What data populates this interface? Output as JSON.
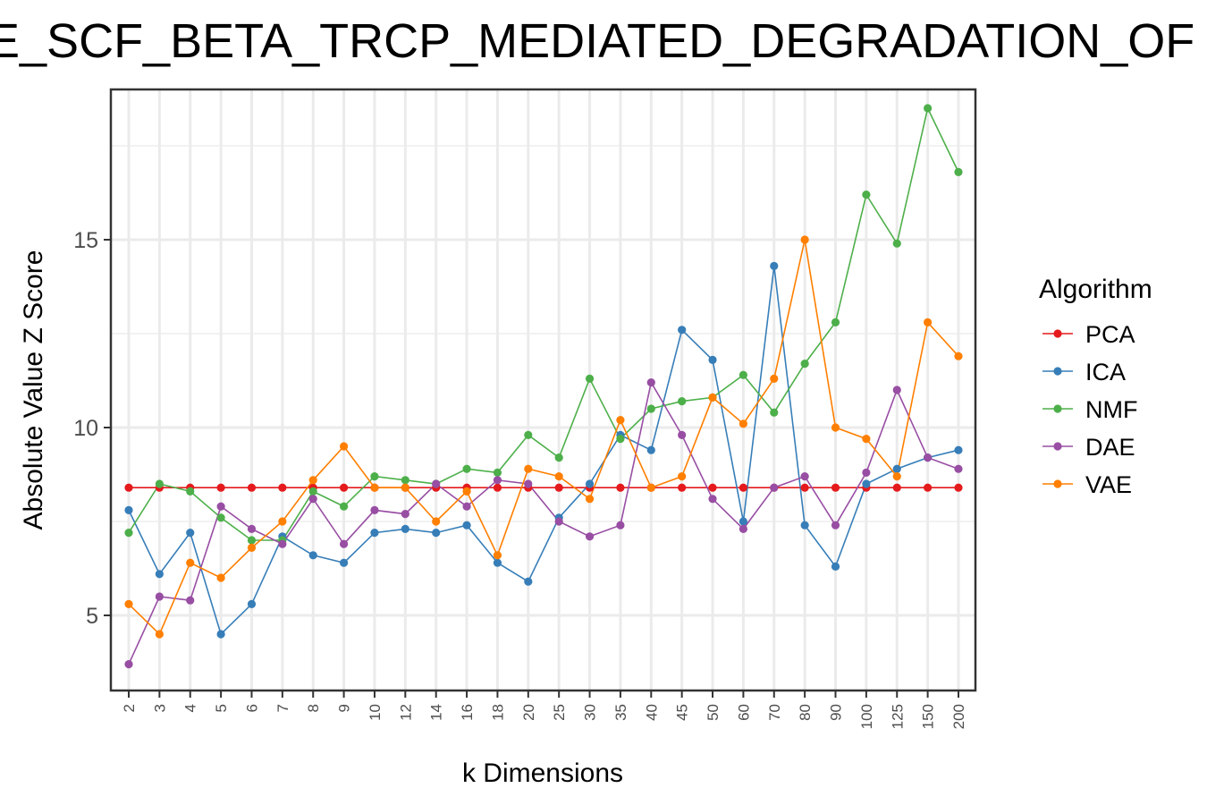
{
  "chart_data": {
    "type": "line",
    "title": "E_SCF_BETA_TRCP_MEDIATED_DEGRADATION_OF",
    "xlabel": "k Dimensions",
    "ylabel": "Absolute Value Z Score",
    "categories": [
      "2",
      "3",
      "4",
      "5",
      "6",
      "7",
      "8",
      "9",
      "10",
      "12",
      "14",
      "16",
      "18",
      "20",
      "25",
      "30",
      "35",
      "40",
      "45",
      "50",
      "60",
      "70",
      "80",
      "90",
      "100",
      "125",
      "150",
      "200"
    ],
    "y_ticks": [
      5,
      10,
      15
    ],
    "ylim": [
      3.0,
      19.0
    ],
    "grid": true,
    "legend": {
      "title": "Algorithm",
      "position": "right"
    },
    "series": [
      {
        "name": "PCA",
        "color": "#e41a1c",
        "values": [
          8.4,
          8.4,
          8.4,
          8.4,
          8.4,
          8.4,
          8.4,
          8.4,
          8.4,
          8.4,
          8.4,
          8.4,
          8.4,
          8.4,
          8.4,
          8.4,
          8.4,
          8.4,
          8.4,
          8.4,
          8.4,
          8.4,
          8.4,
          8.4,
          8.4,
          8.4,
          8.4,
          8.4
        ]
      },
      {
        "name": "ICA",
        "color": "#377eb8",
        "values": [
          7.8,
          6.1,
          7.2,
          4.5,
          5.3,
          7.1,
          6.6,
          6.4,
          7.2,
          7.3,
          7.2,
          7.4,
          6.4,
          5.9,
          7.6,
          8.5,
          9.8,
          9.4,
          12.6,
          11.8,
          7.5,
          14.3,
          7.4,
          6.3,
          8.5,
          8.9,
          9.2,
          9.4
        ]
      },
      {
        "name": "NMF",
        "color": "#4daf4a",
        "values": [
          7.2,
          8.5,
          8.3,
          7.6,
          7.0,
          7.0,
          8.3,
          7.9,
          8.7,
          8.6,
          8.5,
          8.9,
          8.8,
          9.8,
          9.2,
          11.3,
          9.7,
          10.5,
          10.7,
          10.8,
          11.4,
          10.4,
          11.7,
          12.8,
          16.2,
          14.9,
          18.5,
          16.8
        ]
      },
      {
        "name": "DAE",
        "color": "#984ea3",
        "values": [
          3.7,
          5.5,
          5.4,
          7.9,
          7.3,
          6.9,
          8.1,
          6.9,
          7.8,
          7.7,
          8.5,
          7.9,
          8.6,
          8.5,
          7.5,
          7.1,
          7.4,
          11.2,
          9.8,
          8.1,
          7.3,
          8.4,
          8.7,
          7.4,
          8.8,
          11.0,
          9.2,
          8.9
        ]
      },
      {
        "name": "VAE",
        "color": "#ff7f00",
        "values": [
          5.3,
          4.5,
          6.4,
          6.0,
          6.8,
          7.5,
          8.6,
          9.5,
          8.4,
          8.4,
          7.5,
          8.3,
          6.6,
          8.9,
          8.7,
          8.1,
          10.2,
          8.4,
          8.7,
          10.8,
          10.1,
          11.3,
          15.0,
          10.0,
          9.7,
          8.7,
          12.8,
          11.9
        ]
      }
    ]
  }
}
